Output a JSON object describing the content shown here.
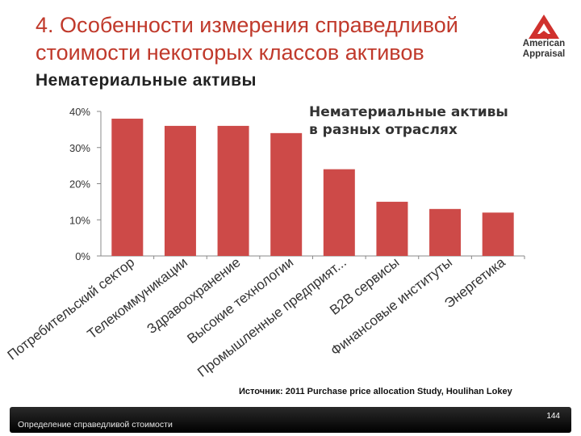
{
  "header": {
    "title": "4. Особенности измерения справедливой стоимости некоторых классов активов",
    "subtitle": "Нематериальные активы"
  },
  "logo": {
    "line1": "American",
    "line2": "Appraisal",
    "icon": "triangle-a-icon",
    "color": "#d0312d"
  },
  "colors": {
    "accent": "#c0392b",
    "bar": "#cd4a48"
  },
  "chart_data": {
    "type": "bar",
    "title": "Нематериальные активы в разных отраслях",
    "title_lines": [
      "Нематериальные активы",
      "в разных отраслях"
    ],
    "categories": [
      "Потребительский сектор",
      "Телекоммуникации",
      "Здравоохранение",
      "Высокие технологии",
      "Промышленные предприят...",
      "B2B сервисы",
      "Финансовые институты",
      "Энергетика"
    ],
    "values": [
      38,
      36,
      36,
      34,
      24,
      15,
      13,
      12
    ],
    "ylim": [
      0,
      40
    ],
    "yticks": [
      "0%",
      "10%",
      "20%",
      "30%",
      "40%"
    ],
    "xlabel": "",
    "ylabel": "",
    "grid": false,
    "legend": "none"
  },
  "source": "Источник: 2011 Purchase price allocation Study, Houlihan Lokey",
  "footer": {
    "text": "Определение справедливой стоимости",
    "page": "144"
  }
}
